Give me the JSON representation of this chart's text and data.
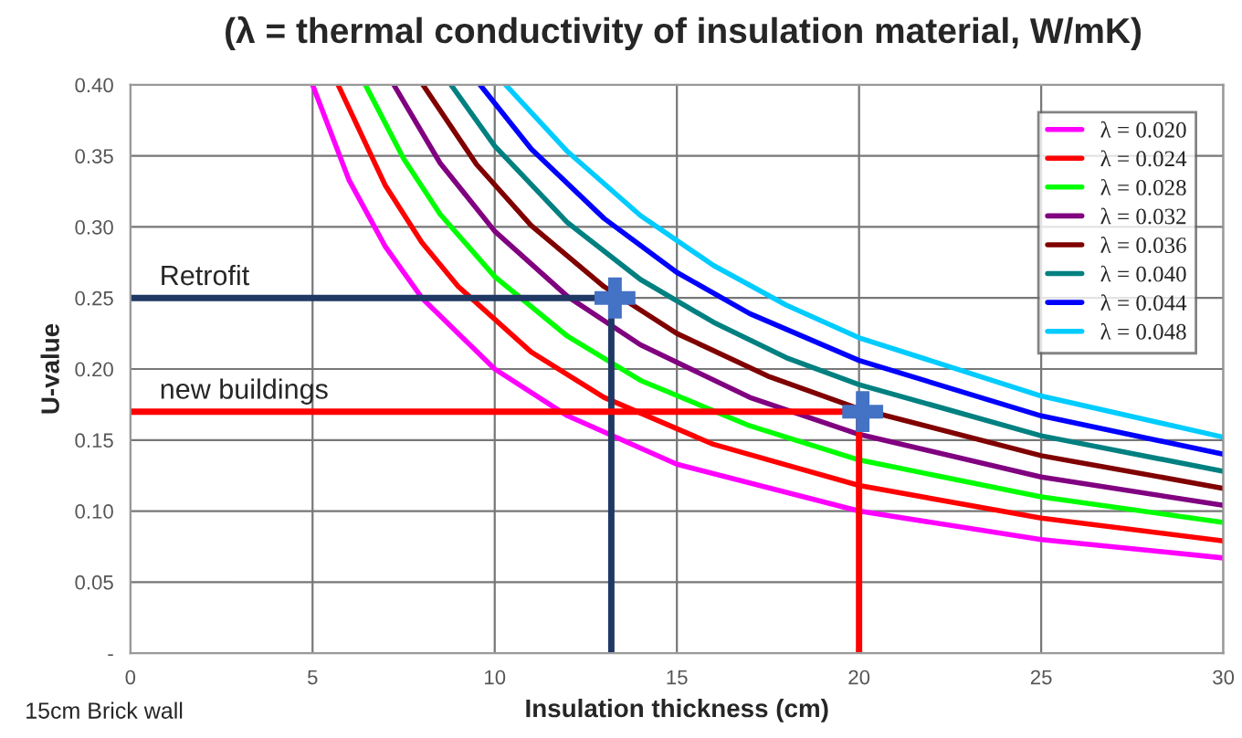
{
  "chart_data": {
    "type": "line",
    "title": "(λ = thermal conductivity of insulation material, W/mK)",
    "xlabel": "Insulation thickness (cm)",
    "ylabel": "U-value",
    "xlim": [
      0,
      30
    ],
    "ylim": [
      0,
      0.4
    ],
    "xticks": [
      0,
      5,
      10,
      15,
      20,
      25,
      30
    ],
    "yticks": [
      {
        "value": 0,
        "label": "-"
      },
      {
        "value": 0.05,
        "label": "0.05"
      },
      {
        "value": 0.1,
        "label": "0.10"
      },
      {
        "value": 0.15,
        "label": "0.15"
      },
      {
        "value": 0.2,
        "label": "0.20"
      },
      {
        "value": 0.25,
        "label": "0.25"
      },
      {
        "value": 0.3,
        "label": "0.30"
      },
      {
        "value": 0.35,
        "label": "0.35"
      },
      {
        "value": 0.4,
        "label": "0.40"
      }
    ],
    "grid": true,
    "legend": "top right",
    "marker": "none",
    "line_style": "solid",
    "series": [
      {
        "name": "λ = 0.020",
        "color": "#ff00ff",
        "x": [
          5,
          6,
          7,
          8,
          10,
          12,
          15,
          20,
          25,
          30
        ],
        "values": [
          0.4,
          0.333,
          0.286,
          0.25,
          0.2,
          0.167,
          0.133,
          0.1,
          0.08,
          0.067
        ]
      },
      {
        "name": "λ = 0.024",
        "color": "#ff0000",
        "x": [
          5.7,
          7,
          8,
          9,
          11,
          13,
          16,
          20,
          25,
          30
        ],
        "values": [
          0.4,
          0.329,
          0.289,
          0.258,
          0.212,
          0.18,
          0.147,
          0.118,
          0.095,
          0.079
        ]
      },
      {
        "name": "λ = 0.028",
        "color": "#00ff00",
        "x": [
          6.45,
          7.5,
          8.5,
          10,
          12,
          14,
          17,
          20,
          25,
          30
        ],
        "values": [
          0.4,
          0.348,
          0.309,
          0.265,
          0.223,
          0.192,
          0.16,
          0.136,
          0.11,
          0.092
        ]
      },
      {
        "name": "λ = 0.032",
        "color": "#800080",
        "x": [
          7.23,
          8.5,
          10,
          12,
          14,
          17,
          20,
          25,
          30
        ],
        "values": [
          0.4,
          0.345,
          0.297,
          0.251,
          0.217,
          0.18,
          0.154,
          0.124,
          0.104
        ]
      },
      {
        "name": "λ = 0.036",
        "color": "#800000",
        "x": [
          8.03,
          9.5,
          11,
          13,
          15,
          17.5,
          20,
          25,
          30
        ],
        "values": [
          0.4,
          0.344,
          0.301,
          0.258,
          0.225,
          0.195,
          0.172,
          0.139,
          0.116
        ]
      },
      {
        "name": "λ = 0.040",
        "color": "#008080",
        "x": [
          8.8,
          10,
          12,
          14,
          16,
          18,
          20,
          25,
          30
        ],
        "values": [
          0.4,
          0.357,
          0.303,
          0.263,
          0.233,
          0.208,
          0.189,
          0.153,
          0.128
        ]
      },
      {
        "name": "λ = 0.044",
        "color": "#0000ff",
        "x": [
          9.6,
          11,
          13,
          15,
          17,
          20,
          25,
          30
        ],
        "values": [
          0.4,
          0.355,
          0.306,
          0.268,
          0.239,
          0.206,
          0.167,
          0.14
        ]
      },
      {
        "name": "λ = 0.048",
        "color": "#00ccff",
        "x": [
          10.3,
          12,
          14,
          16,
          18,
          20,
          25,
          30
        ],
        "values": [
          0.4,
          0.353,
          0.308,
          0.273,
          0.245,
          0.222,
          0.181,
          0.152
        ]
      },
      {
        "type": "line",
        "color": "#1f3864",
        "x": [
          0,
          13.2,
          13.2
        ],
        "values": [
          0.25,
          0.25,
          0
        ]
      },
      {
        "type": "line",
        "color": "#ff0000",
        "x": [
          0,
          20,
          20
        ],
        "values": [
          0.17,
          0.17,
          0
        ]
      },
      {
        "type": "scatter",
        "marker": "cross",
        "color": "#4472c4",
        "x": [
          13.3,
          20.1
        ],
        "values": [
          0.25,
          0.17
        ]
      }
    ],
    "annotations": [
      {
        "text": "Retrofit",
        "x": 0.8,
        "y": 0.255
      },
      {
        "text": "new buildings",
        "x": 0.8,
        "y": 0.175
      },
      "15cm Brick wall"
    ]
  }
}
